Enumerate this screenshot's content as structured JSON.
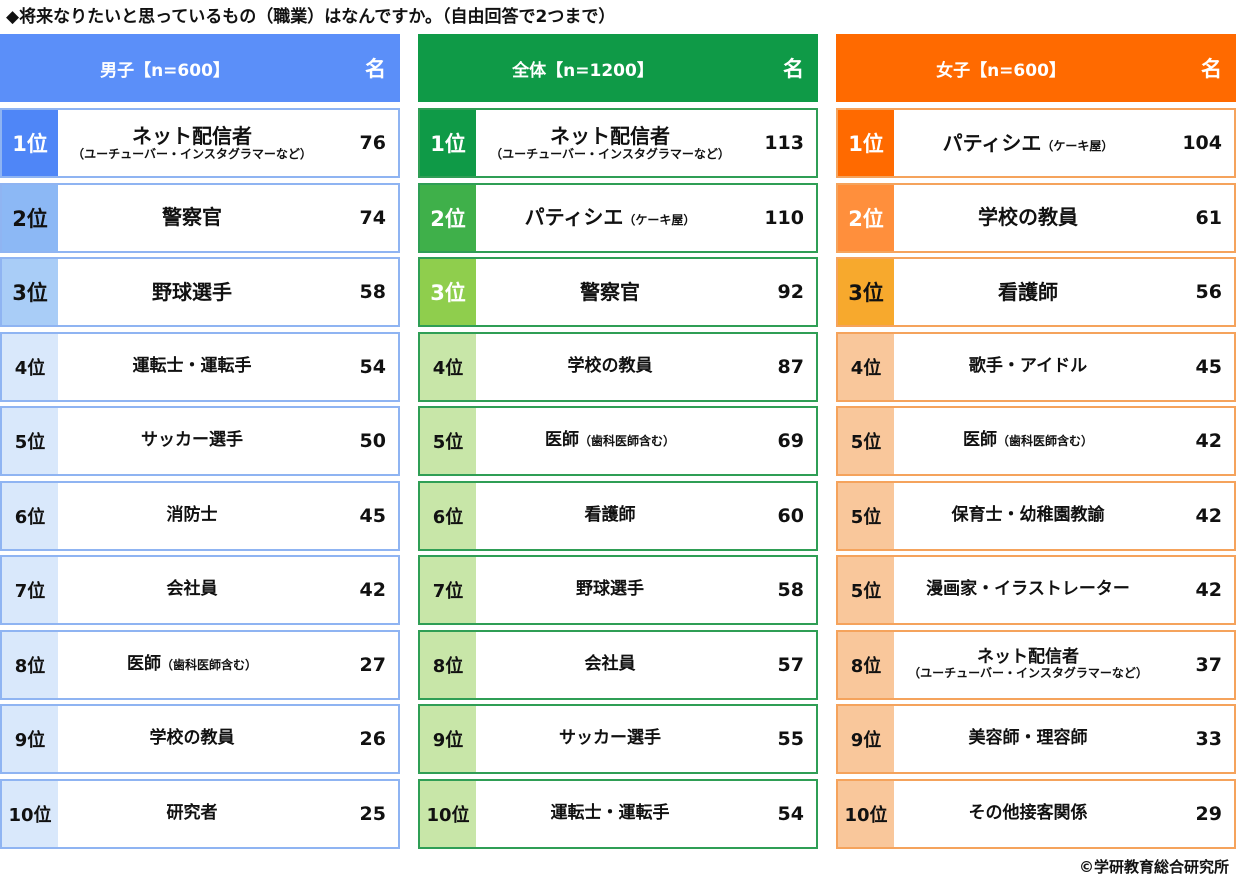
{
  "title": "◆将来なりたいと思っているもの（職業）はなんですか。（自由回答で2つまで）",
  "copyright": "©学研教育総合研究所",
  "chart_data": {
    "type": "table",
    "tables": [
      {
        "header": "男子【n=600】",
        "unit": "名",
        "header_color": "#5b8ff9",
        "border_color": "#8fb4f2",
        "rank_colors": [
          "#4f86f7",
          "#8cb8f5",
          "#a9cdf7",
          "#d9e8fb",
          "#d9e8fb",
          "#d9e8fb",
          "#d9e8fb",
          "#d9e8fb",
          "#d9e8fb",
          "#d9e8fb"
        ],
        "rows": [
          {
            "rank": "1位",
            "job": "ネット配信者",
            "note": "（ユーチューバー・インスタグラマーなど）",
            "value": 76
          },
          {
            "rank": "2位",
            "job": "警察官",
            "note": "",
            "value": 74
          },
          {
            "rank": "3位",
            "job": "野球選手",
            "note": "",
            "value": 58
          },
          {
            "rank": "4位",
            "job": "運転士・運転手",
            "note": "",
            "value": 54
          },
          {
            "rank": "5位",
            "job": "サッカー選手",
            "note": "",
            "value": 50
          },
          {
            "rank": "6位",
            "job": "消防士",
            "note": "",
            "value": 45
          },
          {
            "rank": "7位",
            "job": "会社員",
            "note": "",
            "value": 42
          },
          {
            "rank": "8位",
            "job": "医師",
            "note": "（歯科医師含む）",
            "value": 27
          },
          {
            "rank": "9位",
            "job": "学校の教員",
            "note": "",
            "value": 26
          },
          {
            "rank": "10位",
            "job": "研究者",
            "note": "",
            "value": 25
          }
        ]
      },
      {
        "header": "全体【n=1200】",
        "unit": "名",
        "header_color": "#0f9a47",
        "border_color": "#2f9e55",
        "rank_colors": [
          "#0f9a47",
          "#3fb04a",
          "#8fce4d",
          "#c8e6a8",
          "#c8e6a8",
          "#c8e6a8",
          "#c8e6a8",
          "#c8e6a8",
          "#c8e6a8",
          "#c8e6a8"
        ],
        "rows": [
          {
            "rank": "1位",
            "job": "ネット配信者",
            "note": "（ユーチューバー・インスタグラマーなど）",
            "value": 113
          },
          {
            "rank": "2位",
            "job": "パティシエ",
            "note": "（ケーキ屋）",
            "value": 110
          },
          {
            "rank": "3位",
            "job": "警察官",
            "note": "",
            "value": 92
          },
          {
            "rank": "4位",
            "job": "学校の教員",
            "note": "",
            "value": 87
          },
          {
            "rank": "5位",
            "job": "医師",
            "note": "（歯科医師含む）",
            "value": 69
          },
          {
            "rank": "6位",
            "job": "看護師",
            "note": "",
            "value": 60
          },
          {
            "rank": "7位",
            "job": "野球選手",
            "note": "",
            "value": 58
          },
          {
            "rank": "8位",
            "job": "会社員",
            "note": "",
            "value": 57
          },
          {
            "rank": "9位",
            "job": "サッカー選手",
            "note": "",
            "value": 55
          },
          {
            "rank": "10位",
            "job": "運転士・運転手",
            "note": "",
            "value": 54
          }
        ]
      },
      {
        "header": "女子【n=600】",
        "unit": "名",
        "header_color": "#ff6a00",
        "border_color": "#f5a35c",
        "rank_colors": [
          "#ff6a00",
          "#ff8f3c",
          "#f7a92d",
          "#f9c79b",
          "#f9c79b",
          "#f9c79b",
          "#f9c79b",
          "#f9c79b",
          "#f9c79b",
          "#f9c79b"
        ],
        "rows": [
          {
            "rank": "1位",
            "job": "パティシエ",
            "note": "（ケーキ屋）",
            "value": 104
          },
          {
            "rank": "2位",
            "job": "学校の教員",
            "note": "",
            "value": 61
          },
          {
            "rank": "3位",
            "job": "看護師",
            "note": "",
            "value": 56
          },
          {
            "rank": "4位",
            "job": "歌手・アイドル",
            "note": "",
            "value": 45
          },
          {
            "rank": "5位",
            "job": "医師",
            "note": "（歯科医師含む）",
            "value": 42
          },
          {
            "rank": "5位",
            "job": "保育士・幼稚園教諭",
            "note": "",
            "value": 42
          },
          {
            "rank": "5位",
            "job": "漫画家・イラストレーター",
            "note": "",
            "value": 42
          },
          {
            "rank": "8位",
            "job": "ネット配信者",
            "note": "（ユーチューバー・インスタグラマーなど）",
            "value": 37
          },
          {
            "rank": "9位",
            "job": "美容師・理容師",
            "note": "",
            "value": 33
          },
          {
            "rank": "10位",
            "job": "その他接客関係",
            "note": "",
            "value": 29
          }
        ]
      }
    ]
  }
}
